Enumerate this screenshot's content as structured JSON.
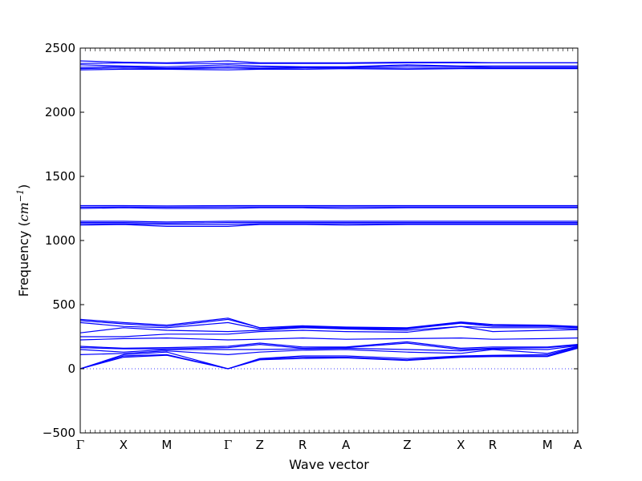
{
  "chart_data": {
    "type": "line",
    "title": "",
    "xlabel": "Wave vector",
    "ylabel": {
      "text": "Frequency (",
      "unit_base": "cm",
      "unit_exponent": "−1",
      "close": ")"
    },
    "ylim": [
      -500,
      2500
    ],
    "yticks": [
      -500,
      0,
      500,
      1000,
      1500,
      2000,
      2500
    ],
    "ytick_labels": [
      "−500",
      "0",
      "500",
      "1000",
      "1500",
      "2000",
      "2500"
    ],
    "xlim": [
      0,
      1
    ],
    "xticks": [
      {
        "label": "Γ",
        "x": 0.0
      },
      {
        "label": "X",
        "x": 0.087
      },
      {
        "label": "M",
        "x": 0.174
      },
      {
        "label": "Γ",
        "x": 0.297
      },
      {
        "label": "Z",
        "x": 0.361
      },
      {
        "label": "R",
        "x": 0.447
      },
      {
        "label": "A",
        "x": 0.534
      },
      {
        "label": "Z",
        "x": 0.657
      },
      {
        "label": "X",
        "x": 0.765
      },
      {
        "label": "R",
        "x": 0.829
      },
      {
        "label": "M",
        "x": 0.939
      },
      {
        "label": "A",
        "x": 1.0
      }
    ],
    "minor_tick_count": 100,
    "zero_line": {
      "y": 0,
      "style": "dotted"
    },
    "grid": false,
    "legend": "none",
    "line_color": "#0000ff",
    "axes_color": "#000000",
    "bands_x": [
      0.0,
      0.087,
      0.174,
      0.297,
      0.361,
      0.447,
      0.534,
      0.657,
      0.765,
      0.829,
      0.939,
      1.0
    ],
    "bands": [
      {
        "name": "b1",
        "y": [
          0,
          90,
          105,
          0,
          70,
          80,
          85,
          65,
          90,
          95,
          95,
          160
        ]
      },
      {
        "name": "b2",
        "y": [
          0,
          100,
          110,
          0,
          75,
          90,
          90,
          70,
          95,
          100,
          100,
          165
        ]
      },
      {
        "name": "b3",
        "y": [
          0,
          110,
          130,
          0,
          80,
          100,
          100,
          80,
          100,
          105,
          110,
          170
        ]
      },
      {
        "name": "b4",
        "y": [
          110,
          120,
          140,
          110,
          130,
          145,
          150,
          130,
          120,
          150,
          120,
          175
        ]
      },
      {
        "name": "b5",
        "y": [
          150,
          130,
          150,
          150,
          150,
          155,
          160,
          150,
          140,
          155,
          150,
          180
        ]
      },
      {
        "name": "b6",
        "y": [
          165,
          155,
          155,
          165,
          190,
          160,
          165,
          200,
          150,
          160,
          165,
          185
        ]
      },
      {
        "name": "b7",
        "y": [
          175,
          160,
          165,
          175,
          200,
          170,
          170,
          210,
          160,
          170,
          170,
          190
        ]
      },
      {
        "name": "b8",
        "y": [
          225,
          235,
          240,
          225,
          230,
          240,
          230,
          235,
          240,
          230,
          235,
          240
        ]
      },
      {
        "name": "b9",
        "y": [
          250,
          250,
          270,
          270,
          290,
          300,
          290,
          285,
          330,
          290,
          300,
          305
        ]
      },
      {
        "name": "b10",
        "y": [
          280,
          320,
          300,
          290,
          300,
          320,
          310,
          300,
          330,
          320,
          320,
          310
        ]
      },
      {
        "name": "b11",
        "y": [
          360,
          330,
          320,
          360,
          310,
          325,
          315,
          310,
          355,
          330,
          330,
          320
        ]
      },
      {
        "name": "b12",
        "y": [
          375,
          350,
          330,
          385,
          320,
          330,
          320,
          315,
          360,
          340,
          335,
          325
        ]
      },
      {
        "name": "b13",
        "y": [
          385,
          360,
          340,
          395,
          320,
          335,
          325,
          320,
          365,
          345,
          340,
          330
        ]
      },
      {
        "name": "b14",
        "y": [
          1120,
          1125,
          1110,
          1110,
          1125,
          1125,
          1120,
          1125,
          1125,
          1125,
          1125,
          1125
        ]
      },
      {
        "name": "b15",
        "y": [
          1130,
          1130,
          1125,
          1125,
          1130,
          1130,
          1130,
          1130,
          1130,
          1130,
          1130,
          1130
        ]
      },
      {
        "name": "b16",
        "y": [
          1140,
          1140,
          1135,
          1140,
          1140,
          1140,
          1140,
          1140,
          1140,
          1140,
          1140,
          1140
        ]
      },
      {
        "name": "b17",
        "y": [
          1150,
          1150,
          1145,
          1150,
          1150,
          1150,
          1150,
          1150,
          1150,
          1150,
          1150,
          1150
        ]
      },
      {
        "name": "b18",
        "y": [
          1250,
          1255,
          1250,
          1250,
          1255,
          1255,
          1250,
          1255,
          1255,
          1255,
          1255,
          1255
        ]
      },
      {
        "name": "b19",
        "y": [
          1260,
          1262,
          1260,
          1262,
          1262,
          1262,
          1262,
          1262,
          1262,
          1262,
          1262,
          1262
        ]
      },
      {
        "name": "b20",
        "y": [
          1272,
          1272,
          1270,
          1272,
          1272,
          1272,
          1272,
          1272,
          1272,
          1272,
          1272,
          1272
        ]
      },
      {
        "name": "b21",
        "y": [
          2330,
          2335,
          2335,
          2330,
          2335,
          2335,
          2340,
          2335,
          2340,
          2340,
          2340,
          2340
        ]
      },
      {
        "name": "b22",
        "y": [
          2340,
          2345,
          2340,
          2345,
          2340,
          2345,
          2345,
          2345,
          2345,
          2345,
          2345,
          2345
        ]
      },
      {
        "name": "b23",
        "y": [
          2350,
          2355,
          2345,
          2355,
          2350,
          2350,
          2350,
          2360,
          2355,
          2350,
          2350,
          2350
        ]
      },
      {
        "name": "b24",
        "y": [
          2370,
          2360,
          2355,
          2370,
          2360,
          2355,
          2355,
          2370,
          2360,
          2360,
          2360,
          2360
        ]
      },
      {
        "name": "b25",
        "y": [
          2380,
          2385,
          2380,
          2380,
          2380,
          2380,
          2380,
          2385,
          2385,
          2385,
          2385,
          2385
        ]
      },
      {
        "name": "b26",
        "y": [
          2400,
          2390,
          2385,
          2400,
          2385,
          2385,
          2385,
          2390,
          2390,
          2385,
          2385,
          2385
        ]
      }
    ]
  }
}
